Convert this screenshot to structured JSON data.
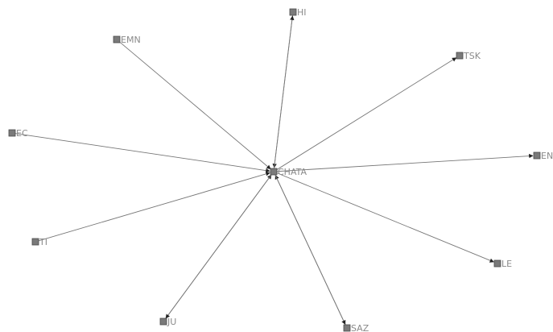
{
  "graph": {
    "center": {
      "id": "CHATA",
      "label": "CHATA"
    },
    "nodes": [
      {
        "id": "HI",
        "label": "HI"
      },
      {
        "id": "EMN",
        "label": "EMN"
      },
      {
        "id": "TSK",
        "label": "TSK"
      },
      {
        "id": "EC",
        "label": "EC"
      },
      {
        "id": "EN",
        "label": "EN"
      },
      {
        "id": "TI",
        "label": "TI"
      },
      {
        "id": "LE",
        "label": "LE"
      },
      {
        "id": "JU",
        "label": "JU"
      },
      {
        "id": "SAZ",
        "label": "SAZ"
      }
    ],
    "edges": [
      {
        "from": "HI",
        "to": "CHATA"
      },
      {
        "from": "CHATA",
        "to": "HI"
      },
      {
        "from": "EMN",
        "to": "CHATA"
      },
      {
        "from": "CHATA",
        "to": "TSK"
      },
      {
        "from": "EC",
        "to": "CHATA"
      },
      {
        "from": "CHATA",
        "to": "EN"
      },
      {
        "from": "TI",
        "to": "CHATA"
      },
      {
        "from": "CHATA",
        "to": "LE"
      },
      {
        "from": "JU",
        "to": "CHATA"
      },
      {
        "from": "CHATA",
        "to": "JU"
      },
      {
        "from": "SAZ",
        "to": "CHATA"
      },
      {
        "from": "CHATA",
        "to": "SAZ"
      }
    ]
  }
}
